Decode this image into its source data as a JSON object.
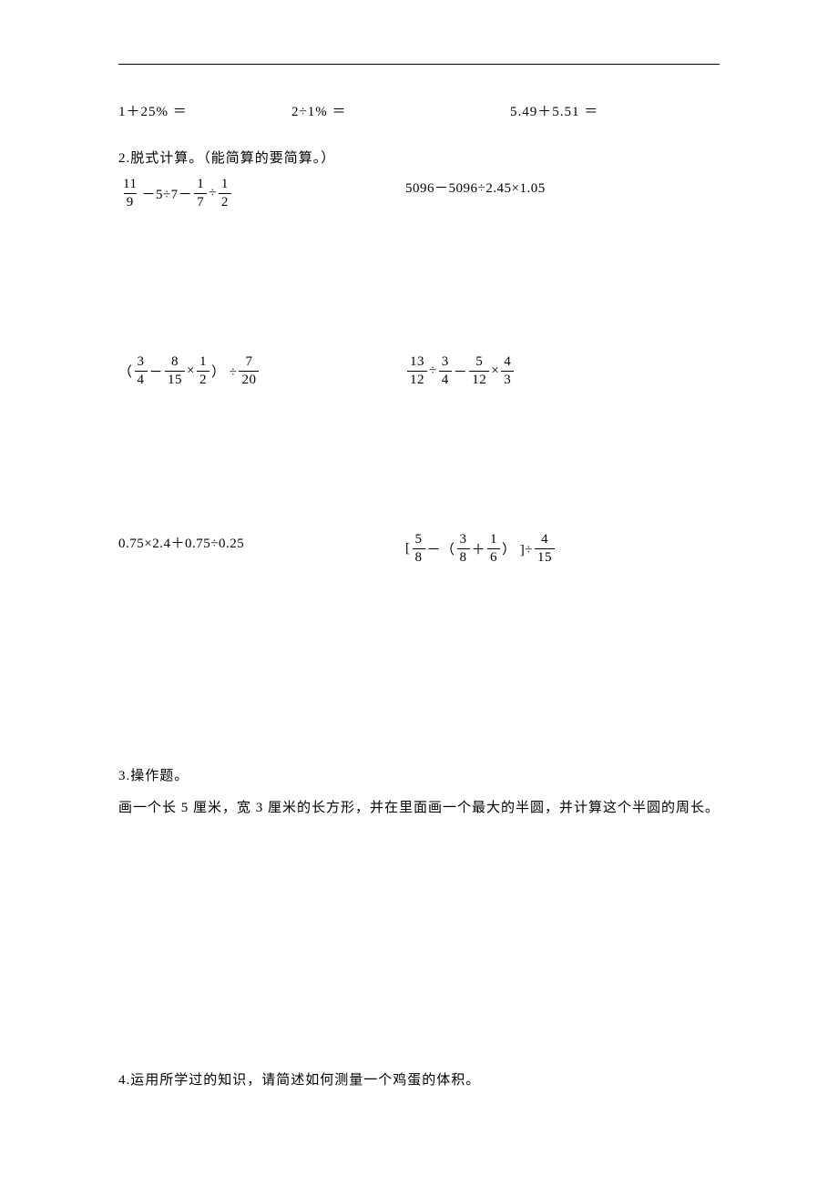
{
  "mental": {
    "q1": "1＋25% ＝",
    "q2": "2÷1% ＝",
    "q3": "5.49＋5.51 ＝"
  },
  "section2_title": "2.脱式计算。（能简算的要简算。）",
  "expr": {
    "a_left": {
      "parts": [
        {
          "t": "frac",
          "n": "11",
          "d": "9"
        },
        {
          "t": "txt",
          "v": "－5÷7－"
        },
        {
          "t": "frac",
          "n": "1",
          "d": "7"
        },
        {
          "t": "txt",
          "v": "÷"
        },
        {
          "t": "frac",
          "n": "1",
          "d": "2"
        }
      ]
    },
    "a_right_text": "5096－5096÷2.45×1.05",
    "b_left": {
      "parts": [
        {
          "t": "txt",
          "v": "（"
        },
        {
          "t": "frac",
          "n": "3",
          "d": "4"
        },
        {
          "t": "txt",
          "v": "－"
        },
        {
          "t": "frac",
          "n": "8",
          "d": "15"
        },
        {
          "t": "txt",
          "v": "×"
        },
        {
          "t": "frac",
          "n": "1",
          "d": "2"
        },
        {
          "t": "txt",
          "v": "） ÷"
        },
        {
          "t": "frac",
          "n": "7",
          "d": "20"
        }
      ]
    },
    "b_right": {
      "parts": [
        {
          "t": "frac",
          "n": "13",
          "d": "12"
        },
        {
          "t": "txt",
          "v": "÷"
        },
        {
          "t": "frac",
          "n": "3",
          "d": "4"
        },
        {
          "t": "txt",
          "v": "－"
        },
        {
          "t": "frac",
          "n": "5",
          "d": "12"
        },
        {
          "t": "txt",
          "v": "×"
        },
        {
          "t": "frac",
          "n": "4",
          "d": "3"
        }
      ]
    },
    "c_left_text": "0.75×2.4＋0.75÷0.25",
    "c_right": {
      "parts": [
        {
          "t": "txt",
          "v": "["
        },
        {
          "t": "frac",
          "n": "5",
          "d": "8"
        },
        {
          "t": "txt",
          "v": "－（"
        },
        {
          "t": "frac",
          "n": "3",
          "d": "8"
        },
        {
          "t": "txt",
          "v": "＋"
        },
        {
          "t": "frac",
          "n": "1",
          "d": "6"
        },
        {
          "t": "txt",
          "v": "） ]÷"
        },
        {
          "t": "frac",
          "n": "4",
          "d": "15"
        }
      ]
    }
  },
  "section3_title": "3.操作题。",
  "section3_body": "画一个长 5 厘米，宽 3 厘米的长方形，并在里面画一个最大的半圆，并计算这个半圆的周长。",
  "section4_title": "4.运用所学过的知识，请简述如何测量一个鸡蛋的体积。",
  "colors": {
    "text": "#000000",
    "background": "#ffffff"
  },
  "font": {
    "body_size_pt": 11,
    "family": "SimSun"
  }
}
